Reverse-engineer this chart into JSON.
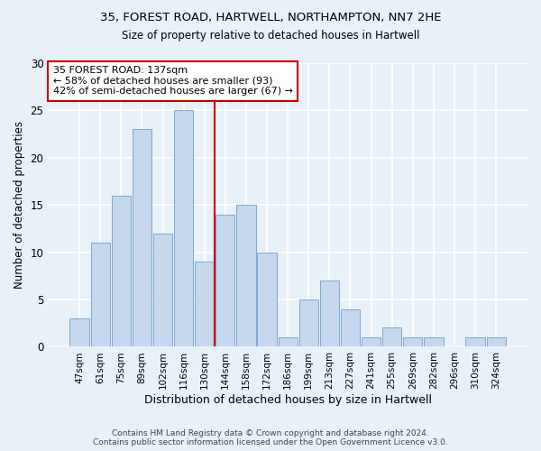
{
  "title1": "35, FOREST ROAD, HARTWELL, NORTHAMPTON, NN7 2HE",
  "title2": "Size of property relative to detached houses in Hartwell",
  "xlabel": "Distribution of detached houses by size in Hartwell",
  "ylabel": "Number of detached properties",
  "categories": [
    "47sqm",
    "61sqm",
    "75sqm",
    "89sqm",
    "102sqm",
    "116sqm",
    "130sqm",
    "144sqm",
    "158sqm",
    "172sqm",
    "186sqm",
    "199sqm",
    "213sqm",
    "227sqm",
    "241sqm",
    "255sqm",
    "269sqm",
    "282sqm",
    "296sqm",
    "310sqm",
    "324sqm"
  ],
  "values": [
    3,
    11,
    16,
    23,
    12,
    25,
    9,
    14,
    15,
    10,
    1,
    5,
    7,
    4,
    1,
    2,
    1,
    1,
    0,
    1,
    1
  ],
  "bar_color": "#c5d8ee",
  "bar_edge_color": "#7aaad0",
  "vline_color": "#cc0000",
  "annotation_text": "35 FOREST ROAD: 137sqm\n← 58% of detached houses are smaller (93)\n42% of semi-detached houses are larger (67) →",
  "annotation_box_color": "#ffffff",
  "annotation_box_edge": "#cc0000",
  "ylim": [
    0,
    30
  ],
  "yticks": [
    0,
    5,
    10,
    15,
    20,
    25,
    30
  ],
  "footer1": "Contains HM Land Registry data © Crown copyright and database right 2024.",
  "footer2": "Contains public sector information licensed under the Open Government Licence v3.0.",
  "bg_color": "#e8f0f8",
  "grid_color": "#ffffff"
}
